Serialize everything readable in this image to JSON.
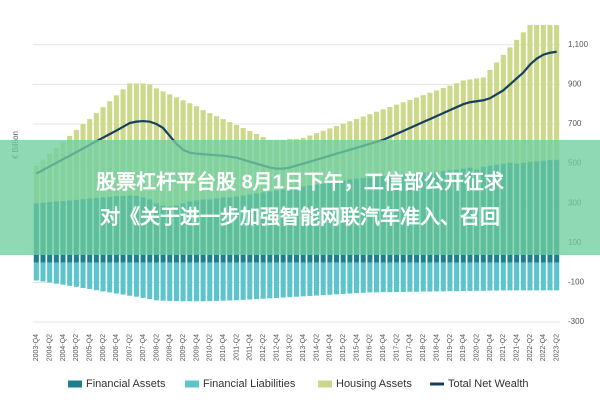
{
  "chart_data": {
    "type": "stacked_bar_line",
    "y_axis_label": "€ Billion",
    "categories": [
      "2003-Q4",
      null,
      "2004-Q2",
      null,
      "2004-Q4",
      null,
      "2005-Q2",
      null,
      "2005-Q4",
      null,
      "2006-Q2",
      null,
      "2006-Q4",
      null,
      "2007-Q2",
      null,
      "2007-Q4",
      null,
      "2008-Q2",
      null,
      "2008-Q4",
      null,
      "2009-Q2",
      null,
      "2009-Q4",
      null,
      "2010-Q2",
      null,
      "2010-Q4",
      null,
      "2011-Q2",
      null,
      "2011-Q4",
      null,
      "2012-Q2",
      null,
      "2012-Q4",
      null,
      "2013-Q2",
      null,
      "2013-Q4",
      null,
      "2014-Q2",
      null,
      "2014-Q4",
      null,
      "2015-Q2",
      null,
      "2015-Q4",
      null,
      "2016-Q2",
      null,
      "2016-Q4",
      null,
      "2017-Q2",
      null,
      "2017-Q4",
      null,
      "2018-Q2",
      null,
      "2018-Q4",
      null,
      "2019-Q2",
      null,
      "2019-Q4",
      null,
      "2020-Q2",
      null,
      "2020-Q4",
      null,
      "2021-Q2",
      null,
      "2021-Q4",
      null,
      "2022-Q2",
      null,
      "2022-Q4",
      null,
      "2023-Q2"
    ],
    "series": [
      {
        "name": "Financial Assets",
        "color": "#1e7f8c",
        "kind": "bar",
        "values": [
          300,
          303,
          306,
          309,
          312,
          315,
          318,
          321,
          324,
          327,
          330,
          333,
          336,
          338,
          340,
          338,
          330,
          320,
          300,
          290,
          285,
          290,
          300,
          310,
          315,
          320,
          320,
          325,
          330,
          330,
          335,
          340,
          345,
          350,
          355,
          360,
          365,
          370,
          375,
          380,
          385,
          390,
          395,
          400,
          405,
          410,
          415,
          420,
          425,
          428,
          431,
          434,
          437,
          440,
          443,
          446,
          449,
          452,
          455,
          458,
          461,
          464,
          467,
          470,
          475,
          480,
          470,
          485,
          490,
          495,
          500,
          505,
          500,
          505,
          510,
          512,
          515,
          518,
          520
        ]
      },
      {
        "name": "Financial Liabilities",
        "color": "#5bc4cc",
        "kind": "bar",
        "values": [
          -90,
          -95,
          -100,
          -106,
          -111,
          -117,
          -122,
          -128,
          -133,
          -139,
          -145,
          -150,
          -156,
          -161,
          -167,
          -172,
          -178,
          -184,
          -190,
          -192,
          -193,
          -194,
          -195,
          -195,
          -195,
          -195,
          -194,
          -193,
          -192,
          -191,
          -190,
          -188,
          -186,
          -184,
          -182,
          -180,
          -178,
          -176,
          -174,
          -172,
          -170,
          -168,
          -166,
          -164,
          -162,
          -160,
          -158,
          -156,
          -154,
          -152,
          -150,
          -150,
          -149,
          -149,
          -148,
          -148,
          -147,
          -147,
          -146,
          -146,
          -145,
          -145,
          -144,
          -144,
          -143,
          -143,
          -142,
          -142,
          -141,
          -141,
          -140,
          -140,
          -140,
          -140,
          -140,
          -140,
          -140,
          -140,
          -140
        ]
      },
      {
        "name": "Housing Assets",
        "color": "#cdd98a",
        "kind": "bar",
        "values": [
          190,
          217,
          244,
          271,
          298,
          325,
          352,
          379,
          401,
          428,
          455,
          482,
          509,
          537,
          565,
          567,
          575,
          580,
          580,
          575,
          565,
          545,
          520,
          495,
          475,
          450,
          435,
          415,
          395,
          380,
          360,
          340,
          320,
          300,
          280,
          260,
          255,
          250,
          250,
          245,
          245,
          252,
          259,
          266,
          273,
          280,
          287,
          294,
          301,
          310,
          319,
          328,
          337,
          346,
          355,
          364,
          373,
          382,
          391,
          400,
          409,
          418,
          427,
          436,
          445,
          445,
          460,
          450,
          483,
          516,
          549,
          582,
          625,
          658,
          690,
          688,
          685,
          682,
          680
        ]
      },
      {
        "name": "Total Net Wealth",
        "color": "#173f5f",
        "kind": "line",
        "values": [
          450,
          468,
          486,
          504,
          522,
          540,
          558,
          576,
          595,
          613,
          631,
          649,
          667,
          686,
          705,
          712,
          715,
          712,
          700,
          680,
          640,
          600,
          570,
          555,
          550,
          548,
          545,
          542,
          540,
          535,
          530,
          520,
          510,
          500,
          490,
          480,
          475,
          475,
          480,
          490,
          500,
          510,
          520,
          530,
          540,
          550,
          560,
          570,
          580,
          590,
          600,
          610,
          620,
          635,
          650,
          665,
          680,
          695,
          710,
          725,
          740,
          755,
          770,
          785,
          800,
          810,
          815,
          820,
          830,
          850,
          870,
          900,
          930,
          960,
          1000,
          1030,
          1050,
          1060,
          1065
        ]
      }
    ],
    "ylim": [
      -340,
      1200
    ],
    "yticks": [
      -300,
      -100,
      100,
      300,
      500,
      700,
      900,
      {
        "value": 1100,
        "label": "1,100"
      }
    ],
    "grid": true,
    "legend": "bottom"
  },
  "overlay": {
    "lines": [
      "股票杠杆平台股 8月1日下午，工信部公开征求",
      "对《关于进一步加强智能网联汽车准入、召回"
    ]
  }
}
